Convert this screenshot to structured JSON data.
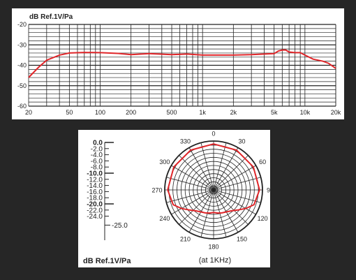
{
  "chart_data": [
    {
      "type": "line",
      "title": "",
      "ylabel": "dB Ref.1V/Pa",
      "xlabel": "",
      "xscale": "log",
      "xlim": [
        20,
        20000
      ],
      "ylim": [
        -60,
        -20
      ],
      "x_tick_values": [
        20,
        50,
        100,
        200,
        500,
        1000,
        2000,
        5000,
        10000,
        20000
      ],
      "x_tick_labels": [
        "20",
        "50",
        "100",
        "200",
        "500",
        "1k",
        "2k",
        "5k",
        "10k",
        "20k"
      ],
      "y_tick_values": [
        -20,
        -30,
        -40,
        -50,
        -60
      ],
      "y_tick_labels": [
        "-20",
        "-30",
        "-40",
        "-50",
        "-60"
      ],
      "grid": true,
      "line_color": "#e0262a",
      "series": [
        {
          "x": [
            20,
            25,
            30,
            40,
            50,
            70,
            100,
            150,
            200,
            300,
            500,
            700,
            1000,
            2000,
            3000,
            4000,
            5000,
            5500,
            6000,
            6500,
            7000,
            8000,
            9000,
            10000,
            12000,
            15000,
            17000,
            20000
          ],
          "y": [
            -46,
            -41,
            -37.5,
            -35,
            -34,
            -33.7,
            -33.8,
            -34.2,
            -34.8,
            -34.3,
            -34.8,
            -34.5,
            -35,
            -35,
            -34.8,
            -34.5,
            -34.3,
            -33,
            -32.5,
            -32.5,
            -33.5,
            -33.8,
            -33.8,
            -35,
            -37,
            -38,
            -39,
            -41.5
          ]
        }
      ]
    },
    {
      "type": "polar",
      "title": "(at 1KHz)",
      "ylabel": "dB Ref.1V/Pa",
      "angle_labels": [
        "0",
        "30",
        "60",
        "90",
        "120",
        "150",
        "180",
        "210",
        "240",
        "270",
        "300",
        "330"
      ],
      "angle_values": [
        0,
        30,
        60,
        90,
        120,
        150,
        180,
        210,
        240,
        270,
        300,
        330
      ],
      "r_range": [
        -25,
        0
      ],
      "scale_labels": [
        "0.0",
        "-2.0",
        "-4.0",
        "-6.0",
        "-8.0",
        "-10.0",
        "-12.0",
        "-14.0",
        "-16.0",
        "-18.0",
        "-20.0",
        "-22.0",
        "-24.0",
        "-25.0"
      ],
      "scale_values": [
        0,
        -2,
        -4,
        -6,
        -8,
        -10,
        -12,
        -14,
        -16,
        -18,
        -20,
        -22,
        -24,
        -25
      ],
      "bold_scale_values": [
        0,
        -10,
        -20
      ],
      "line_color": "#e0262a",
      "series": [
        {
          "angles": [
            0,
            30,
            60,
            90,
            110,
            120,
            130,
            140,
            150,
            160,
            170,
            180,
            190,
            200,
            210,
            220,
            230,
            240,
            250,
            270,
            300,
            330,
            360
          ],
          "values": [
            -1.5,
            -1.5,
            -1.5,
            -1.5,
            -3,
            -6,
            -9,
            -11,
            -12,
            -12.5,
            -13,
            -13.5,
            -13,
            -12.5,
            -12,
            -11,
            -9,
            -6,
            -3,
            -1.5,
            -1.5,
            -1.5,
            -1.5
          ]
        }
      ]
    }
  ]
}
